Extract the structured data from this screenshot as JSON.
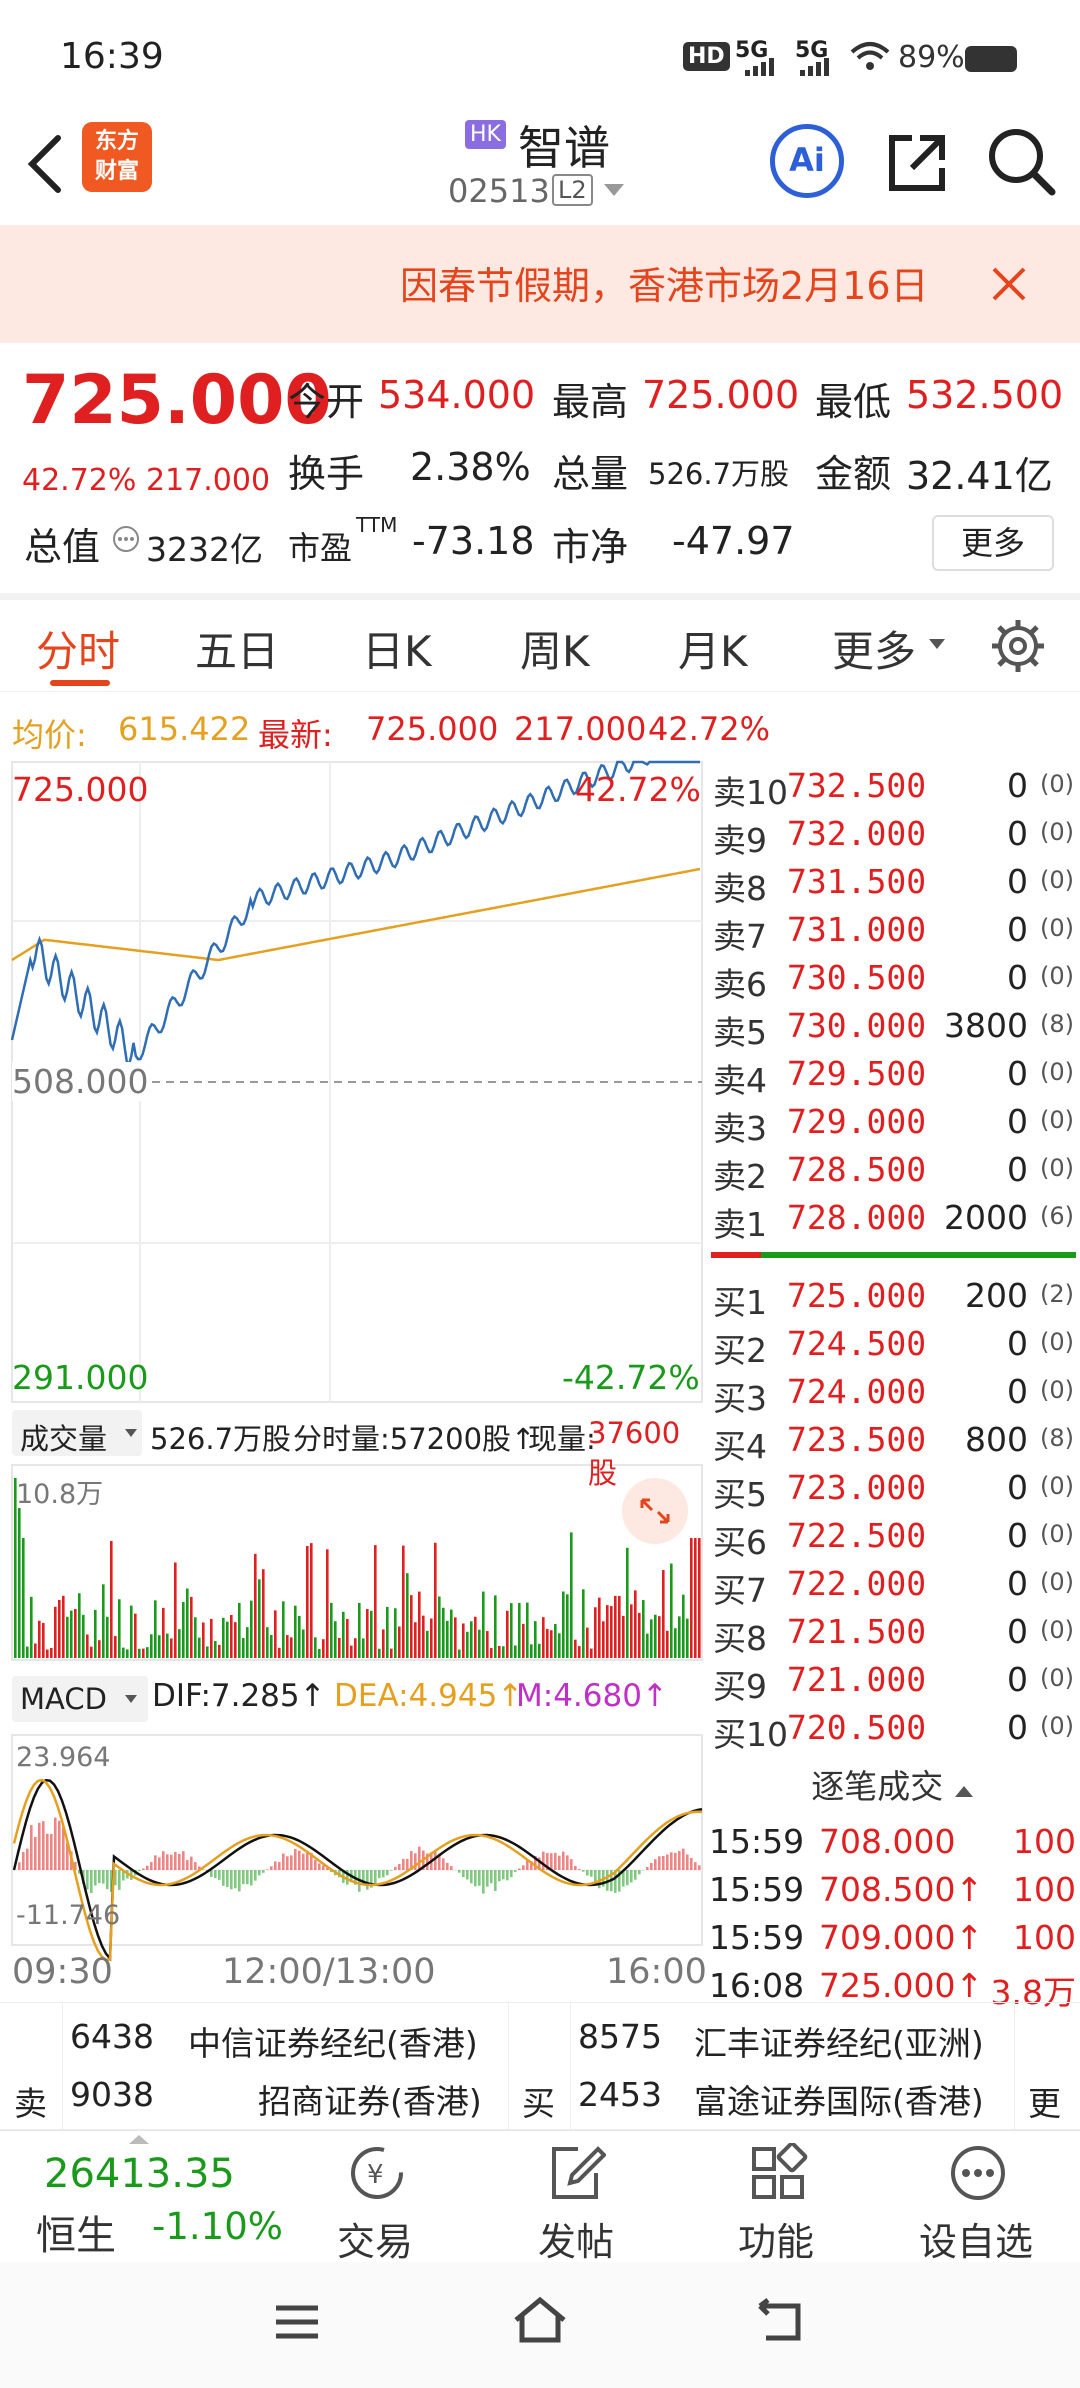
{
  "status": {
    "time": "16:39",
    "network_hd": "HD",
    "net1": "5G",
    "net2": "5G",
    "battery": "89%"
  },
  "header": {
    "market_badge": "HK",
    "stock_name": "智谱",
    "stock_code": "02513",
    "level_badge": "L2",
    "logo_line1": "东方",
    "logo_line2": "财富",
    "ai_label": "Ai"
  },
  "notice": {
    "text": "因春节假期，香港市场2月16日"
  },
  "quote": {
    "price": "725.000",
    "change_pct": "42.72%",
    "change_amt": "217.000",
    "open_label": "今开",
    "open": "534.000",
    "high_label": "最高",
    "high": "725.000",
    "low_label": "最低",
    "low": "532.500",
    "turnover_label": "换手",
    "turnover": "2.38%",
    "volume_label": "总量",
    "volume": "526.7万股",
    "amount_label": "金额",
    "amount": "32.41亿",
    "mktcap_label": "总值",
    "mktcap": "3232亿",
    "pe_label": "市盈",
    "pe_sup": "TTM",
    "pe": "-73.18",
    "pb_label": "市净",
    "pb": "-47.97",
    "more_label": "更多"
  },
  "tabs": [
    "分时",
    "五日",
    "日K",
    "周K",
    "月K",
    "更多"
  ],
  "avgline": {
    "avg_label": "均价:",
    "avg": "615.422",
    "last_label": "最新:",
    "last": "725.000",
    "chg": "217.000",
    "pct": "42.72%"
  },
  "chart": {
    "top_price": "725.000",
    "top_pct": "42.72%",
    "mid_price": "508.000",
    "bottom_price": "291.000",
    "bottom_pct": "-42.72%",
    "vol_selector": "成交量",
    "vol_total": "526.7万股",
    "vol_minute": "分时量:57200股↑",
    "vol_now_label": "现量:",
    "vol_now": "37600股",
    "vol_max": "10.8万",
    "macd_selector": "MACD",
    "dif": "DIF:7.285↑",
    "dea": "DEA:4.945↑",
    "m": "M:4.680↑",
    "macd_top": "23.964",
    "macd_bottom": "-11.746",
    "time_start": "09:30",
    "time_mid": "12:00/13:00",
    "time_end": "16:00"
  },
  "colors": {
    "accent": "#e4451d",
    "up": "#e02020",
    "down": "#1a9a1a",
    "price_line": "#2f6db5",
    "avg_line": "#e5a020"
  },
  "asks": [
    {
      "label": "卖10",
      "price": "732.500",
      "vol": "0",
      "cnt": "(0)"
    },
    {
      "label": "卖9",
      "price": "732.000",
      "vol": "0",
      "cnt": "(0)"
    },
    {
      "label": "卖8",
      "price": "731.500",
      "vol": "0",
      "cnt": "(0)"
    },
    {
      "label": "卖7",
      "price": "731.000",
      "vol": "0",
      "cnt": "(0)"
    },
    {
      "label": "卖6",
      "price": "730.500",
      "vol": "0",
      "cnt": "(0)"
    },
    {
      "label": "卖5",
      "price": "730.000",
      "vol": "3800",
      "cnt": "(8)"
    },
    {
      "label": "卖4",
      "price": "729.500",
      "vol": "0",
      "cnt": "(0)"
    },
    {
      "label": "卖3",
      "price": "729.000",
      "vol": "0",
      "cnt": "(0)"
    },
    {
      "label": "卖2",
      "price": "728.500",
      "vol": "0",
      "cnt": "(0)"
    },
    {
      "label": "卖1",
      "price": "728.000",
      "vol": "2000",
      "cnt": "(6)"
    }
  ],
  "bids": [
    {
      "label": "买1",
      "price": "725.000",
      "vol": "200",
      "cnt": "(2)"
    },
    {
      "label": "买2",
      "price": "724.500",
      "vol": "0",
      "cnt": "(0)"
    },
    {
      "label": "买3",
      "price": "724.000",
      "vol": "0",
      "cnt": "(0)"
    },
    {
      "label": "买4",
      "price": "723.500",
      "vol": "800",
      "cnt": "(8)"
    },
    {
      "label": "买5",
      "price": "723.000",
      "vol": "0",
      "cnt": "(0)"
    },
    {
      "label": "买6",
      "price": "722.500",
      "vol": "0",
      "cnt": "(0)"
    },
    {
      "label": "买7",
      "price": "722.000",
      "vol": "0",
      "cnt": "(0)"
    },
    {
      "label": "买8",
      "price": "721.500",
      "vol": "0",
      "cnt": "(0)"
    },
    {
      "label": "买9",
      "price": "721.000",
      "vol": "0",
      "cnt": "(0)"
    },
    {
      "label": "买10",
      "price": "720.500",
      "vol": "0",
      "cnt": "(0)"
    }
  ],
  "ticks_header": "逐笔成交",
  "ticks": [
    {
      "time": "15:59",
      "price": "708.000",
      "vol": "100"
    },
    {
      "time": "15:59",
      "price": "708.500↑",
      "vol": "100"
    },
    {
      "time": "15:59",
      "price": "709.000↑",
      "vol": "100"
    },
    {
      "time": "16:08",
      "price": "725.000↑",
      "vol": "3.8万"
    }
  ],
  "brokers": {
    "sell_label": "卖",
    "buy_label": "买",
    "more_label": "更",
    "sell": [
      {
        "id": "6438",
        "name": "中信证券经纪(香港)"
      },
      {
        "id": "9038",
        "name": "招商证券(香港)"
      }
    ],
    "buy": [
      {
        "id": "8575",
        "name": "汇丰证券经纪(亚洲)"
      },
      {
        "id": "2453",
        "name": "富途证券国际(香港)"
      }
    ]
  },
  "bottomnav": {
    "index_value": "26413.35",
    "index_name": "恒生",
    "index_pct": "-1.10%",
    "trade": "交易",
    "post": "发帖",
    "func": "功能",
    "watch": "设自选"
  }
}
